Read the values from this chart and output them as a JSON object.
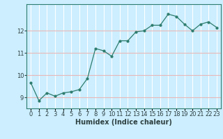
{
  "x": [
    0,
    1,
    2,
    3,
    4,
    5,
    6,
    7,
    8,
    9,
    10,
    11,
    12,
    13,
    14,
    15,
    16,
    17,
    18,
    19,
    20,
    21,
    22,
    23
  ],
  "y": [
    9.65,
    8.85,
    9.2,
    9.05,
    9.2,
    9.25,
    9.35,
    9.85,
    11.2,
    11.1,
    10.85,
    11.55,
    11.55,
    11.95,
    12.0,
    12.25,
    12.25,
    12.75,
    12.65,
    12.3,
    12.0,
    12.3,
    12.4,
    12.15
  ],
  "line_color": "#2e7d6e",
  "marker": "o",
  "marker_size": 2,
  "bg_color": "#cceeff",
  "grid_color_x": "#ffffff",
  "grid_color_y": "#e8b8b8",
  "xlabel": "Humidex (Indice chaleur)",
  "xlabel_fontsize": 7,
  "ylim": [
    8.5,
    13.2
  ],
  "xlim": [
    -0.5,
    23.5
  ],
  "yticks": [
    9,
    10,
    11,
    12
  ],
  "xticks": [
    0,
    1,
    2,
    3,
    4,
    5,
    6,
    7,
    8,
    9,
    10,
    11,
    12,
    13,
    14,
    15,
    16,
    17,
    18,
    19,
    20,
    21,
    22,
    23
  ],
  "tick_fontsize": 6,
  "spine_color": "#2e7d6e",
  "text_color": "#2e4040"
}
